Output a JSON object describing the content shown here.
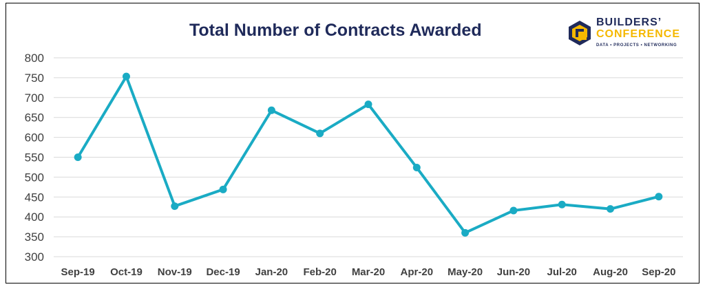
{
  "chart_data": {
    "type": "line",
    "title": "Total Number of Contracts Awarded",
    "categories": [
      "Sep-19",
      "Oct-19",
      "Nov-19",
      "Dec-19",
      "Jan-20",
      "Feb-20",
      "Mar-20",
      "Apr-20",
      "May-20",
      "Jun-20",
      "Jul-20",
      "Aug-20",
      "Sep-20"
    ],
    "series": [
      {
        "values": [
          550,
          753,
          427,
          469,
          668,
          610,
          683,
          524,
          360,
          416,
          431,
          420,
          451
        ],
        "color": "#1aabc4"
      }
    ],
    "yticks": [
      "800",
      "750",
      "700",
      "650",
      "600",
      "550",
      "500",
      "450",
      "400",
      "350",
      "300"
    ],
    "ylim": [
      300,
      800
    ],
    "grid": true,
    "xlabel": "",
    "ylabel": ""
  },
  "logo": {
    "line1": "BUILDERS’",
    "line2": "CONFERENCE",
    "tagline": "DATA • PROJECTS • NETWORKING",
    "colors": {
      "navy": "#1f2a5a",
      "gold": "#f5b800"
    }
  }
}
